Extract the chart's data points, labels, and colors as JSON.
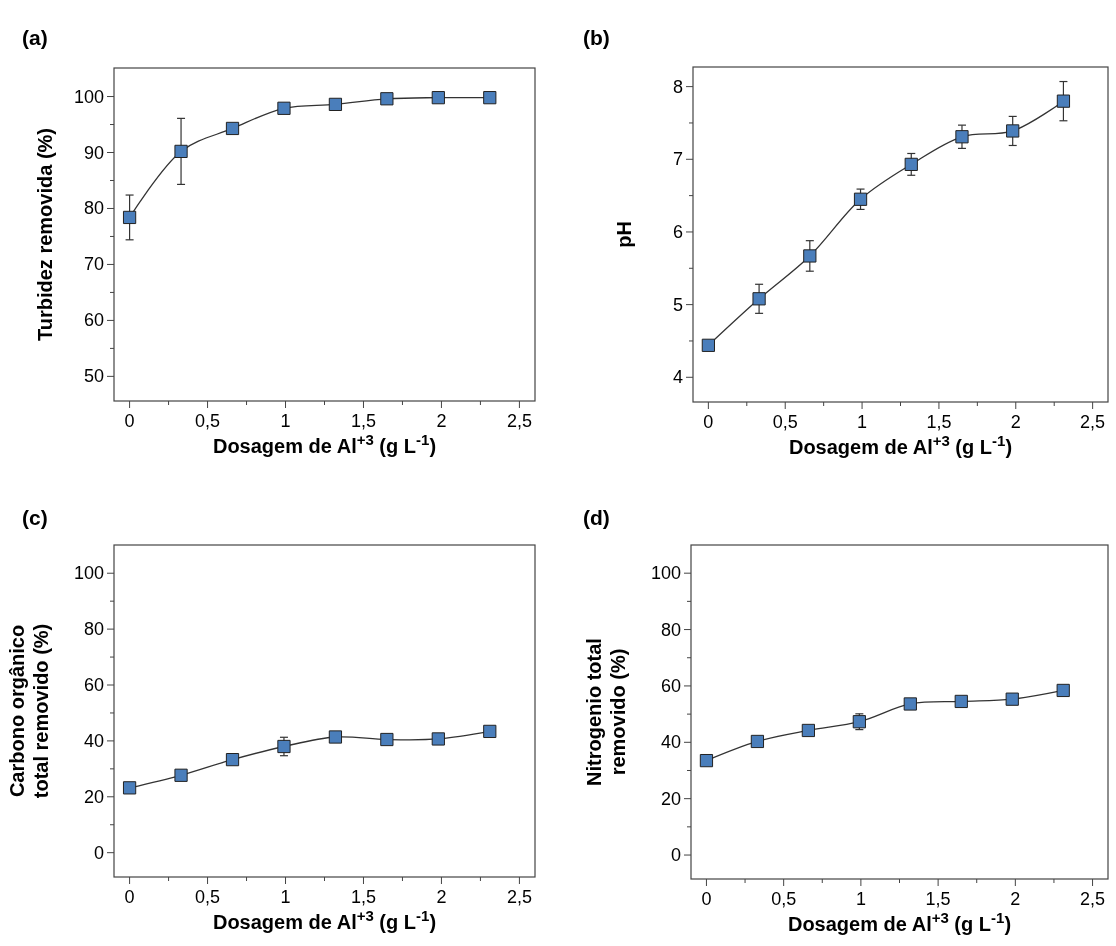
{
  "chart_data": [
    {
      "type": "line",
      "title": "(a)",
      "xlabel": "Dosagem de Al$^{+3}$ (g L$^{-1}$)",
      "ylabel": "Turbidez removida (%)",
      "marker": "square",
      "x": [
        0,
        0.33,
        0.66,
        0.99,
        1.32,
        1.65,
        1.98,
        2.31
      ],
      "series": [
        {
          "color": "#4a7ebb",
          "values": [
            78.4,
            90.2,
            94.3,
            97.9,
            98.6,
            99.6,
            99.8,
            99.8
          ],
          "errors": [
            4,
            5.9,
            null,
            null,
            null,
            null,
            null,
            null
          ]
        }
      ],
      "xlim": [
        -0.1,
        2.6
      ],
      "ylim": [
        45.6,
        105.1
      ],
      "xticks": [
        0,
        {
          "value": 0.25,
          "label": null
        },
        {
          "value": 0.5,
          "label": "0,5"
        },
        {
          "value": 0.75,
          "label": null
        },
        1,
        {
          "value": 1.25,
          "label": null
        },
        {
          "value": 1.5,
          "label": "1,5"
        },
        {
          "value": 1.75,
          "label": null
        },
        2,
        {
          "value": 2.25,
          "label": null
        },
        {
          "value": 2.5,
          "label": "2,5"
        }
      ],
      "yticks": [
        50,
        {
          "value": 55,
          "label": null
        },
        60,
        {
          "value": 65,
          "label": null
        },
        70,
        {
          "value": 75,
          "label": null
        },
        80,
        {
          "value": 85,
          "label": null
        },
        90,
        {
          "value": 95,
          "label": null
        },
        100
      ]
    },
    {
      "type": "line",
      "title": "(b)",
      "xlabel": "Dosagem de Al$^{+3}$ (g L$^{-1}$)",
      "ylabel": "pH",
      "marker": "square",
      "x": [
        0,
        0.33,
        0.66,
        0.99,
        1.32,
        1.65,
        1.98,
        2.31
      ],
      "series": [
        {
          "color": "#4a7ebb",
          "values": [
            4.44,
            5.08,
            5.67,
            6.45,
            6.93,
            7.31,
            7.39,
            7.8
          ],
          "errors": [
            null,
            0.2,
            0.21,
            0.14,
            0.15,
            0.16,
            0.2,
            0.27
          ]
        }
      ],
      "xlim": [
        -0.1,
        2.6
      ],
      "ylim": [
        3.66,
        8.27
      ],
      "xticks": [
        0,
        {
          "value": 0.25,
          "label": null
        },
        {
          "value": 0.5,
          "label": "0,5"
        },
        {
          "value": 0.75,
          "label": null
        },
        1,
        {
          "value": 1.25,
          "label": null
        },
        {
          "value": 1.5,
          "label": "1,5"
        },
        {
          "value": 1.75,
          "label": null
        },
        2,
        {
          "value": 2.25,
          "label": null
        },
        {
          "value": 2.5,
          "label": "2,5"
        }
      ],
      "yticks": [
        4,
        {
          "value": 4.5,
          "label": null
        },
        5,
        {
          "value": 5.5,
          "label": null
        },
        6,
        {
          "value": 6.5,
          "label": null
        },
        7,
        {
          "value": 7.5,
          "label": null
        },
        8
      ]
    },
    {
      "type": "line",
      "title": "(c)",
      "xlabel": "Dosagem de Al$^{+3}$ (g L$^{-1}$)",
      "ylabel": "Carbono orgânico total removido (%)",
      "marker": "square",
      "x": [
        0,
        0.33,
        0.66,
        0.99,
        1.32,
        1.65,
        1.98,
        2.31
      ],
      "series": [
        {
          "color": "#4a7ebb",
          "values": [
            23.2,
            27.7,
            33.3,
            38,
            41.4,
            40.5,
            40.7,
            43.4
          ],
          "errors": [
            null,
            null,
            null,
            3.3,
            null,
            null,
            null,
            null
          ]
        }
      ],
      "xlim": [
        -0.1,
        2.6
      ],
      "ylim": [
        -8.7,
        110.1
      ],
      "xticks": [
        0,
        {
          "value": 0.25,
          "label": null
        },
        {
          "value": 0.5,
          "label": "0,5"
        },
        {
          "value": 0.75,
          "label": null
        },
        1,
        {
          "value": 1.25,
          "label": null
        },
        {
          "value": 1.5,
          "label": "1,5"
        },
        {
          "value": 1.75,
          "label": null
        },
        2,
        {
          "value": 2.25,
          "label": null
        },
        {
          "value": 2.5,
          "label": "2,5"
        }
      ],
      "yticks": [
        0,
        {
          "value": 10,
          "label": null
        },
        20,
        {
          "value": 30,
          "label": null
        },
        40,
        {
          "value": 50,
          "label": null
        },
        60,
        {
          "value": 70,
          "label": null
        },
        80,
        {
          "value": 90,
          "label": null
        },
        100
      ]
    },
    {
      "type": "line",
      "title": "(d)",
      "xlabel": "Dosagem de Al$^{+3}$ (g L$^{-1}$)",
      "ylabel": "Nitrogenio total removido (%)",
      "marker": "square",
      "x": [
        0,
        0.33,
        0.66,
        0.99,
        1.32,
        1.65,
        1.98,
        2.31
      ],
      "series": [
        {
          "color": "#4a7ebb",
          "values": [
            33.5,
            40.3,
            44.2,
            47.3,
            53.6,
            54.5,
            55.3,
            58.4
          ],
          "errors": [
            null,
            null,
            null,
            2.8,
            null,
            null,
            null,
            null
          ]
        }
      ],
      "xlim": [
        -0.1,
        2.6
      ],
      "ylim": [
        -8.5,
        110
      ],
      "xticks": [
        0,
        {
          "value": 0.25,
          "label": null
        },
        {
          "value": 0.5,
          "label": "0,5"
        },
        {
          "value": 0.75,
          "label": null
        },
        1,
        {
          "value": 1.25,
          "label": null
        },
        {
          "value": 1.5,
          "label": "1,5"
        },
        {
          "value": 1.75,
          "label": null
        },
        2,
        {
          "value": 2.25,
          "label": null
        },
        {
          "value": 2.5,
          "label": "2,5"
        }
      ],
      "yticks": [
        0,
        {
          "value": 10,
          "label": null
        },
        20,
        {
          "value": 30,
          "label": null
        },
        40,
        {
          "value": 50,
          "label": null
        },
        60,
        {
          "value": 70,
          "label": null
        },
        80,
        {
          "value": 90,
          "label": null
        },
        100
      ]
    }
  ]
}
